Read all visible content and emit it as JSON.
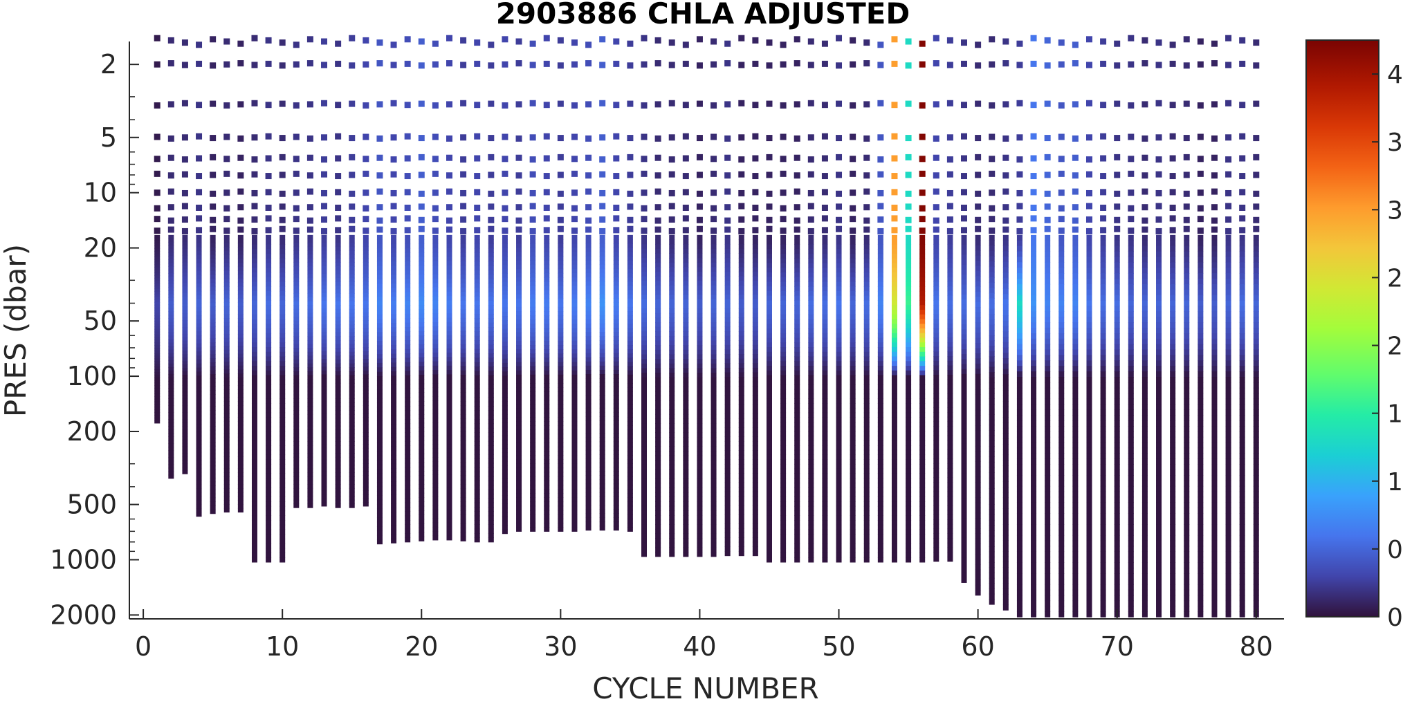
{
  "chart_data": {
    "type": "heatmap",
    "title": "2903886  CHLA ADJUSTED",
    "xlabel": "CYCLE NUMBER",
    "ylabel": "PRES (dbar)",
    "xlim": [
      -1,
      82
    ],
    "ylim": [
      1.5,
      2100
    ],
    "yscale": "log",
    "y_reversed": true,
    "x_ticks": [
      0,
      10,
      20,
      30,
      40,
      50,
      60,
      70,
      80
    ],
    "x_tick_labels": [
      "0",
      "10",
      "20",
      "30",
      "40",
      "50",
      "60",
      "70",
      "80"
    ],
    "y_ticks": [
      2,
      5,
      10,
      20,
      50,
      100,
      200,
      500,
      1000,
      2000
    ],
    "y_tick_labels": [
      "2",
      "5",
      "10",
      "20",
      "50",
      "100",
      "200",
      "500",
      "1000",
      "2000"
    ],
    "colorbar": {
      "range": [
        0,
        4.25
      ],
      "ticks": [
        0,
        0.5,
        1,
        1.5,
        2,
        2.5,
        3,
        3.5,
        4
      ],
      "tick_labels": [
        "0",
        "0.5",
        "1",
        "1.5",
        "2",
        "2.5",
        "3",
        "3.5",
        "4"
      ],
      "colormap": "turbo"
    },
    "grid": false,
    "discrete_sample_pressures": [
      1.5,
      2,
      3.3,
      5,
      6.5,
      8,
      10,
      12,
      14,
      16
    ],
    "continuous_profile_start_pressure": 17,
    "cycles": [
      1,
      2,
      3,
      4,
      5,
      6,
      7,
      8,
      9,
      10,
      11,
      12,
      13,
      14,
      15,
      16,
      17,
      18,
      19,
      20,
      21,
      22,
      23,
      24,
      25,
      26,
      27,
      28,
      29,
      30,
      31,
      32,
      33,
      34,
      35,
      36,
      37,
      38,
      39,
      40,
      41,
      42,
      43,
      44,
      45,
      46,
      47,
      48,
      49,
      50,
      51,
      52,
      53,
      54,
      55,
      56,
      57,
      58,
      59,
      60,
      61,
      62,
      63,
      64,
      65,
      66,
      67,
      68,
      69,
      70,
      71,
      72,
      73,
      74,
      75,
      76,
      77,
      78,
      79,
      80
    ],
    "max_pressure": [
      180,
      360,
      340,
      580,
      560,
      550,
      550,
      1030,
      1030,
      1030,
      520,
      520,
      510,
      520,
      520,
      510,
      820,
      810,
      800,
      790,
      780,
      780,
      790,
      800,
      800,
      720,
      700,
      700,
      700,
      700,
      700,
      690,
      690,
      690,
      700,
      960,
      960,
      960,
      960,
      960,
      960,
      950,
      950,
      950,
      1030,
      1030,
      1030,
      1030,
      1030,
      1030,
      1030,
      1030,
      1030,
      1030,
      1030,
      1030,
      1020,
      1020,
      1330,
      1560,
      1750,
      1880,
      2050,
      2050,
      2050,
      2050,
      2050,
      2050,
      2050,
      2050,
      2050,
      2050,
      2050,
      2050,
      2050,
      2050,
      2050,
      2050,
      2050,
      2050
    ],
    "surface_chla": [
      0.05,
      0.15,
      0.15,
      0.2,
      0.1,
      0.15,
      0.1,
      0.15,
      0.2,
      0.15,
      0.2,
      0.2,
      0.25,
      0.2,
      0.25,
      0.3,
      0.4,
      0.3,
      0.35,
      0.45,
      0.35,
      0.3,
      0.25,
      0.3,
      0.25,
      0.3,
      0.25,
      0.35,
      0.3,
      0.25,
      0.3,
      0.35,
      0.45,
      0.3,
      0.25,
      0.2,
      0.15,
      0.15,
      0.15,
      0.1,
      0.15,
      0.2,
      0.1,
      0.1,
      0.1,
      0.1,
      0.1,
      0.15,
      0.15,
      0.2,
      0.1,
      0.15,
      0.4,
      3.0,
      1.3,
      4.2,
      0.3,
      0.25,
      0.2,
      0.15,
      0.15,
      0.2,
      0.25,
      0.6,
      0.5,
      0.4,
      0.45,
      0.3,
      0.25,
      0.2,
      0.2,
      0.15,
      0.2,
      0.15,
      0.15,
      0.1,
      0.1,
      0.2,
      0.2,
      0.15
    ],
    "peak_chla": [
      0.3,
      0.45,
      0.45,
      0.5,
      0.45,
      0.5,
      0.45,
      0.5,
      0.55,
      0.5,
      0.55,
      0.55,
      0.6,
      0.6,
      0.6,
      0.6,
      0.7,
      0.65,
      0.7,
      0.75,
      0.7,
      0.65,
      0.6,
      0.6,
      0.6,
      0.6,
      0.6,
      0.65,
      0.65,
      0.6,
      0.65,
      0.7,
      0.8,
      0.65,
      0.6,
      0.55,
      0.5,
      0.5,
      0.5,
      0.45,
      0.5,
      0.5,
      0.45,
      0.45,
      0.5,
      0.5,
      0.5,
      0.55,
      0.55,
      0.6,
      0.5,
      0.55,
      0.7,
      2.4,
      1.6,
      3.9,
      0.6,
      0.55,
      0.55,
      0.55,
      0.55,
      0.6,
      1.3,
      0.8,
      0.7,
      0.7,
      0.7,
      0.6,
      0.55,
      0.55,
      0.5,
      0.5,
      0.5,
      0.5,
      0.5,
      0.45,
      0.45,
      0.5,
      0.55,
      0.5
    ]
  }
}
